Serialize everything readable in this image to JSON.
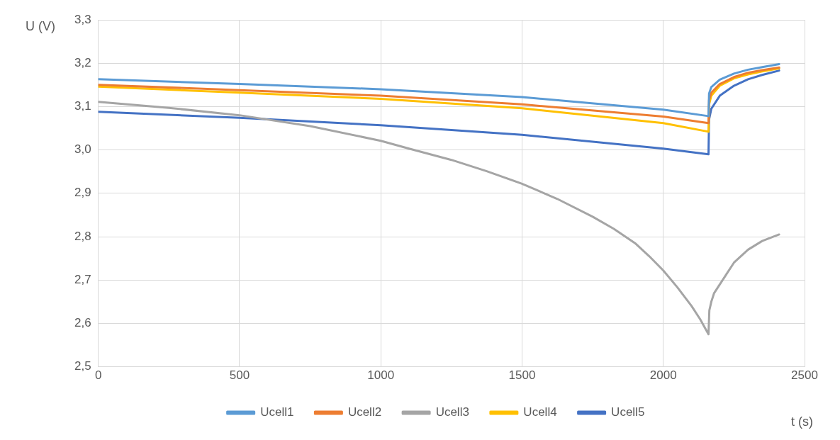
{
  "chart_data": {
    "type": "line",
    "xlabel": "t (s)",
    "ylabel": "U (V)",
    "xlim": [
      0,
      2500
    ],
    "xticks": [
      0,
      500,
      1000,
      1500,
      2000,
      2500
    ],
    "ylim": [
      2.5,
      3.3
    ],
    "yticks": [
      {
        "value": 2.5,
        "label": "2,5"
      },
      {
        "value": 2.6,
        "label": "2,6"
      },
      {
        "value": 2.7,
        "label": "2,7"
      },
      {
        "value": 2.8,
        "label": "2,8"
      },
      {
        "value": 2.9,
        "label": "2,9"
      },
      {
        "value": 3.0,
        "label": "3,0"
      },
      {
        "value": 3.1,
        "label": "3,1"
      },
      {
        "value": 3.2,
        "label": "3,2"
      },
      {
        "value": 3.3,
        "label": "3,3"
      }
    ],
    "grid": true,
    "legend": "bottom",
    "marker": "none",
    "line_style": "solid",
    "series": [
      {
        "name": "Ucell1",
        "color": "#5b9bd5",
        "x": [
          0,
          500,
          1000,
          1500,
          2000,
          2160,
          2162,
          2170,
          2200,
          2250,
          2300,
          2350,
          2410
        ],
        "values": [
          3.163,
          3.152,
          3.14,
          3.122,
          3.093,
          3.078,
          3.13,
          3.145,
          3.162,
          3.176,
          3.185,
          3.191,
          3.198
        ]
      },
      {
        "name": "Ucell2",
        "color": "#ed7d31",
        "x": [
          0,
          500,
          1000,
          1500,
          2000,
          2160,
          2162,
          2170,
          2200,
          2250,
          2300,
          2350,
          2410
        ],
        "values": [
          3.15,
          3.138,
          3.125,
          3.105,
          3.077,
          3.062,
          3.115,
          3.132,
          3.152,
          3.168,
          3.178,
          3.184,
          3.19
        ]
      },
      {
        "name": "Ucell3",
        "color": "#a5a5a5",
        "x": [
          0,
          250,
          500,
          750,
          1000,
          1100,
          1250,
          1375,
          1500,
          1625,
          1750,
          1825,
          1900,
          1950,
          2000,
          2050,
          2100,
          2130,
          2160,
          2163,
          2170,
          2180,
          2200,
          2220,
          2250,
          2300,
          2350,
          2410
        ],
        "values": [
          3.111,
          3.097,
          3.08,
          3.055,
          3.021,
          3.003,
          2.977,
          2.951,
          2.922,
          2.887,
          2.846,
          2.818,
          2.785,
          2.755,
          2.722,
          2.683,
          2.64,
          2.61,
          2.575,
          2.63,
          2.65,
          2.67,
          2.69,
          2.71,
          2.74,
          2.77,
          2.79,
          2.805
        ]
      },
      {
        "name": "Ucell4",
        "color": "#ffc000",
        "x": [
          0,
          500,
          1000,
          1500,
          2000,
          2160,
          2162,
          2170,
          2200,
          2250,
          2300,
          2350,
          2410
        ],
        "values": [
          3.146,
          3.132,
          3.118,
          3.096,
          3.062,
          3.042,
          3.105,
          3.125,
          3.148,
          3.165,
          3.174,
          3.181,
          3.188
        ]
      },
      {
        "name": "Ucell5",
        "color": "#4472c4",
        "x": [
          0,
          500,
          1000,
          1500,
          2000,
          2160,
          2162,
          2170,
          2200,
          2250,
          2300,
          2350,
          2410
        ],
        "values": [
          3.088,
          3.074,
          3.057,
          3.035,
          3.003,
          2.99,
          3.07,
          3.095,
          3.125,
          3.148,
          3.163,
          3.173,
          3.183
        ]
      }
    ]
  }
}
